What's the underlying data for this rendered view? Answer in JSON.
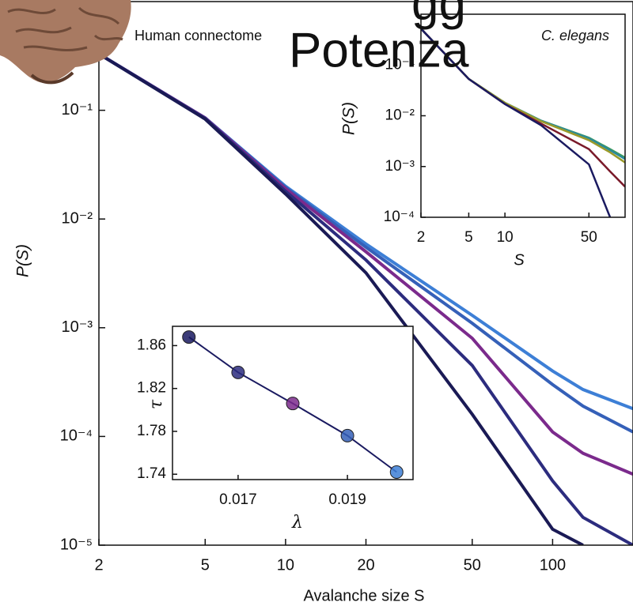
{
  "overlay": {
    "fragment": "gg",
    "title": "Potenza"
  },
  "chart_data": [
    {
      "type": "line",
      "annotation": "Human connectome",
      "xlabel": "Avalanche size S",
      "ylabel": "P(S)",
      "xlog": true,
      "ylog": true,
      "xlim": [
        2,
        200
      ],
      "ylim": [
        1e-05,
        1
      ],
      "xticks": [
        2,
        5,
        10,
        20,
        50,
        100
      ],
      "yticks": [
        {
          "value": 0.1,
          "label": "10⁻¹"
        },
        {
          "value": 0.01,
          "label": "10⁻²"
        },
        {
          "value": 0.001,
          "label": "10⁻³"
        },
        {
          "value": 0.0001,
          "label": "10⁻⁴"
        },
        {
          "value": 1e-05,
          "label": "10⁻⁵"
        }
      ],
      "x": [
        2,
        5,
        10,
        20,
        50,
        100,
        130,
        200
      ],
      "series": [
        {
          "color": "#3d7fd6",
          "values": [
            0.33,
            0.085,
            0.02,
            0.0059,
            0.0013,
            0.0004,
            0.00027,
            0.00018
          ]
        },
        {
          "color": "#3560b8",
          "values": [
            0.33,
            0.085,
            0.0195,
            0.0055,
            0.0011,
            0.0003,
            0.00019,
            0.00011
          ]
        },
        {
          "color": "#7b2a8c",
          "values": [
            0.33,
            0.085,
            0.019,
            0.005,
            0.0008,
            0.00011,
            7e-05,
            4.5e-05
          ]
        },
        {
          "color": "#2c2c7e",
          "values": [
            0.33,
            0.084,
            0.018,
            0.0042,
            0.00045,
            3.9e-05,
            1.8e-05,
            1e-05
          ]
        },
        {
          "color": "#1a1a55",
          "values": [
            0.33,
            0.083,
            0.017,
            0.0032,
            0.00016,
            1.4e-05,
            1e-05,
            null
          ]
        }
      ]
    },
    {
      "type": "line",
      "annotation": "C. elegans",
      "xlabel": "S",
      "ylabel": "P(S)",
      "xlog": true,
      "ylog": true,
      "xlim": [
        2,
        100
      ],
      "ylim": [
        0.0001,
        1
      ],
      "xticks": [
        2,
        5,
        10,
        50
      ],
      "yticks": [
        {
          "value": 0.1,
          "label": "10⁻¹"
        },
        {
          "value": 0.01,
          "label": "10⁻²"
        },
        {
          "value": 0.001,
          "label": "10⁻³"
        },
        {
          "value": 0.0001,
          "label": "10⁻⁴"
        }
      ],
      "x": [
        2,
        5,
        10,
        20,
        50,
        75,
        100
      ],
      "series": [
        {
          "color": "#3c9a5a",
          "values": [
            0.52,
            0.053,
            0.018,
            0.008,
            0.0037,
            0.0022,
            0.0015
          ]
        },
        {
          "color": "#2a8a9a",
          "values": [
            0.52,
            0.053,
            0.018,
            0.008,
            0.0036,
            0.0021,
            0.0014
          ]
        },
        {
          "color": "#9a9a2a",
          "values": [
            0.52,
            0.053,
            0.018,
            0.0078,
            0.0033,
            0.0019,
            0.0012
          ]
        },
        {
          "color": "#7a1a2a",
          "values": [
            0.52,
            0.053,
            0.017,
            0.007,
            0.0022,
            0.0008,
            0.0004
          ]
        },
        {
          "color": "#1a1a60",
          "values": [
            0.52,
            0.053,
            0.017,
            0.0065,
            0.0011,
            0.0001,
            null
          ]
        }
      ]
    },
    {
      "type": "scatter",
      "xlabel": "λ",
      "ylabel": "τ",
      "xlim": [
        0.0158,
        0.0202
      ],
      "ylim": [
        1.735,
        1.878
      ],
      "xticks": [
        0.017,
        0.019
      ],
      "yticks": [
        1.74,
        1.78,
        1.82,
        1.86
      ],
      "x": [
        0.0161,
        0.017,
        0.018,
        0.019,
        0.0199
      ],
      "values": [
        1.868,
        1.835,
        1.806,
        1.776,
        1.742
      ],
      "line_color": "#1a1a60",
      "point_colors": [
        "#1a1a60",
        "#2c2c7e",
        "#7b2a8c",
        "#3560b8",
        "#3d7fd6"
      ]
    }
  ]
}
